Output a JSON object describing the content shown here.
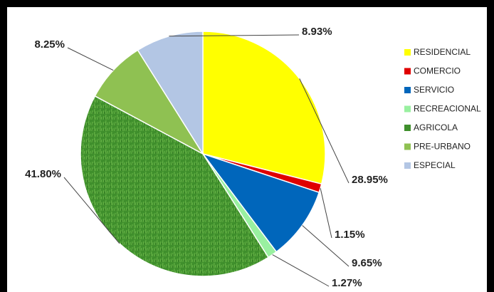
{
  "chart_data": {
    "type": "pie",
    "categories": [
      "RESIDENCIAL",
      "COMERCIO",
      "SERVICIO",
      "RECREACIONAL",
      "AGRICOLA",
      "PRE-URBANO",
      "ESPECIAL"
    ],
    "values": [
      28.95,
      1.15,
      9.65,
      1.27,
      41.8,
      8.25,
      8.93
    ],
    "value_labels": [
      "28.95%",
      "1.15%",
      "9.65%",
      "1.27%",
      "41.80%",
      "8.25%",
      "8.93%"
    ],
    "colors": [
      "#ffff00",
      "#e00000",
      "#0066bb",
      "#99f0a0",
      "#3f8f2c",
      "#8fc152",
      "#b3c6e4"
    ],
    "legend": "right"
  }
}
